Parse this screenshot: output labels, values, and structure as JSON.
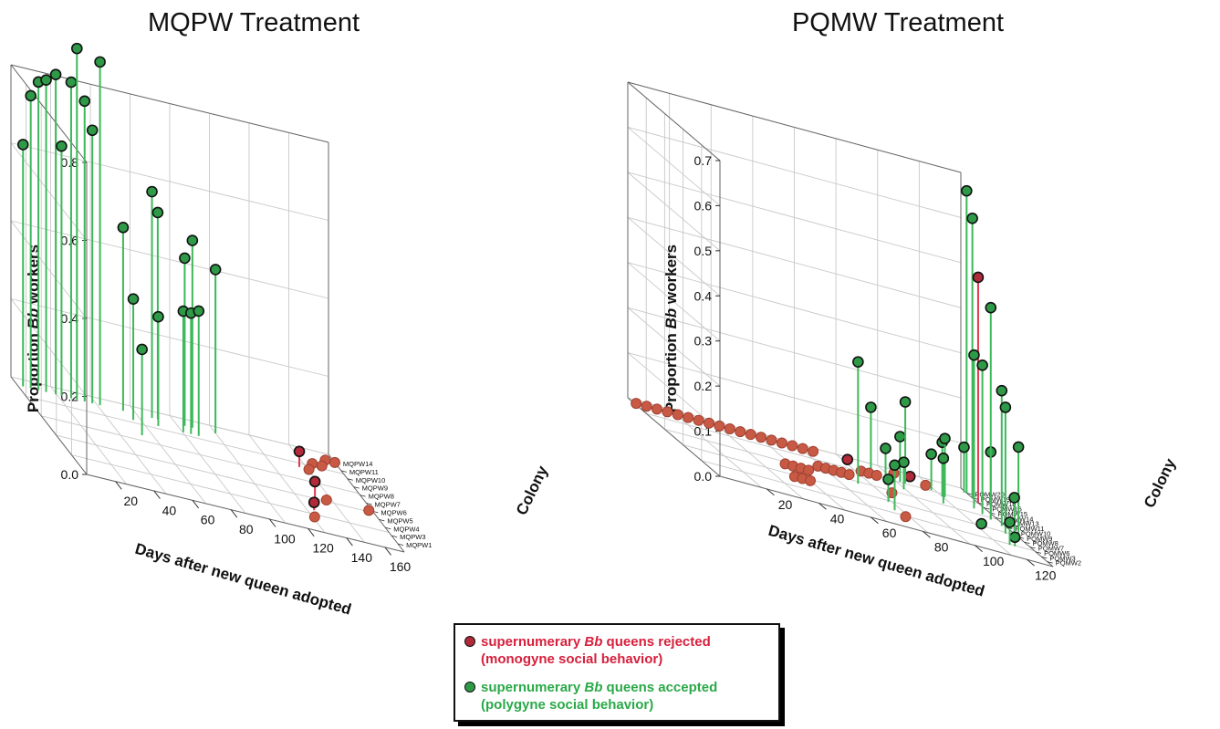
{
  "colors": {
    "rejected": "#b02a3a",
    "accepted": "#2e9a47",
    "rejected_stem": "#e0384a",
    "accepted_stem": "#3db85a",
    "rejected_fill_far": "#c85a45",
    "grid": "#c8c8c8"
  },
  "legend": {
    "rejected": {
      "pre": "supernumerary ",
      "em": "Bb",
      "post": " queens rejected",
      "line2": "(monogyne social behavior)",
      "color": "#d6203d"
    },
    "accepted": {
      "pre": "supernumerary ",
      "em": "Bb",
      "post": " queens accepted",
      "line2": "(polygyne social behavior)",
      "color": "#2aa948"
    }
  },
  "chart_data": [
    {
      "type": "scatter3d",
      "title": "MQPW Treatment",
      "xlabel": "Days after new queen adopted",
      "ylabel_pre": "Proportion ",
      "ylabel_em": "Bb",
      "ylabel_post": " workers",
      "zlabel": "Colony",
      "x_ticks": [
        "20",
        "40",
        "60",
        "80",
        "100",
        "120",
        "140",
        "160"
      ],
      "y_ticks": [
        "0.0",
        "0.2",
        "0.4",
        "0.6",
        "0.8"
      ],
      "colony_ticks": [
        "MQPW1",
        "MQPW3",
        "MQPW4",
        "MQPW5",
        "MQPW6",
        "MQPW7",
        "MQPW8",
        "MQPW9",
        "MQPW10",
        "MQPW11",
        "MQPW14"
      ],
      "xlim": [
        5,
        170
      ],
      "ylim": [
        0,
        0.8
      ],
      "grid": true,
      "points": [
        {
          "day": 8,
          "colony": "MQPW14",
          "value": 0.62,
          "status": "accepted"
        },
        {
          "day": 12,
          "colony": "MQPW14",
          "value": 0.75,
          "status": "accepted"
        },
        {
          "day": 16,
          "colony": "MQPW14",
          "value": 0.79,
          "status": "accepted"
        },
        {
          "day": 20,
          "colony": "MQPW14",
          "value": 0.8,
          "status": "accepted"
        },
        {
          "day": 25,
          "colony": "MQPW14",
          "value": 0.82,
          "status": "accepted"
        },
        {
          "day": 28,
          "colony": "MQPW14",
          "value": 0.64,
          "status": "accepted"
        },
        {
          "day": 33,
          "colony": "MQPW14",
          "value": 0.81,
          "status": "accepted"
        },
        {
          "day": 36,
          "colony": "MQPW14",
          "value": 0.9,
          "status": "accepted"
        },
        {
          "day": 40,
          "colony": "MQPW14",
          "value": 0.77,
          "status": "accepted"
        },
        {
          "day": 44,
          "colony": "MQPW14",
          "value": 0.7,
          "status": "accepted"
        },
        {
          "day": 48,
          "colony": "MQPW14",
          "value": 0.88,
          "status": "accepted"
        },
        {
          "day": 60,
          "colony": "MQPW14",
          "value": 0.47,
          "status": "accepted"
        },
        {
          "day": 75,
          "colony": "MQPW14",
          "value": 0.58,
          "status": "accepted"
        },
        {
          "day": 78,
          "colony": "MQPW14",
          "value": 0.53,
          "status": "accepted"
        },
        {
          "day": 92,
          "colony": "MQPW14",
          "value": 0.43,
          "status": "accepted"
        },
        {
          "day": 96,
          "colony": "MQPW14",
          "value": 0.48,
          "status": "accepted"
        },
        {
          "day": 108,
          "colony": "MQPW14",
          "value": 0.42,
          "status": "accepted"
        },
        {
          "day": 62,
          "colony": "MQPW11",
          "value": 0.31,
          "status": "accepted"
        },
        {
          "day": 75,
          "colony": "MQPW11",
          "value": 0.28,
          "status": "accepted"
        },
        {
          "day": 88,
          "colony": "MQPW11",
          "value": 0.31,
          "status": "accepted"
        },
        {
          "day": 92,
          "colony": "MQPW11",
          "value": 0.31,
          "status": "accepted"
        },
        {
          "day": 96,
          "colony": "MQPW11",
          "value": 0.32,
          "status": "accepted"
        },
        {
          "day": 60,
          "colony": "MQPW9",
          "value": 0.22,
          "status": "accepted"
        },
        {
          "day": 130,
          "colony": "MQPW3",
          "value": 0.0,
          "status": "rejected"
        },
        {
          "day": 133,
          "colony": "MQPW4",
          "value": 0.02,
          "status": "rejected"
        },
        {
          "day": 140,
          "colony": "MQPW6",
          "value": 0.04,
          "status": "rejected"
        },
        {
          "day": 146,
          "colony": "MQPW6",
          "value": 0.0,
          "status": "rejected"
        },
        {
          "day": 145,
          "colony": "MQPW10",
          "value": 0.04,
          "status": "rejected"
        },
        {
          "day": 150,
          "colony": "MQPW10",
          "value": 0.0,
          "status": "rejected"
        },
        {
          "day": 155,
          "colony": "MQPW11",
          "value": 0.0,
          "status": "rejected"
        },
        {
          "day": 160,
          "colony": "MQPW11",
          "value": 0.0,
          "status": "rejected"
        },
        {
          "day": 165,
          "colony": "MQPW14",
          "value": 0.0,
          "status": "rejected"
        },
        {
          "day": 170,
          "colony": "MQPW14",
          "value": 0.0,
          "status": "rejected"
        },
        {
          "day": 168,
          "colony": "MQPW6",
          "value": 0.0,
          "status": "rejected"
        }
      ]
    },
    {
      "type": "scatter3d",
      "title": "PQMW Treatment",
      "xlabel": "Days after new queen adopted",
      "ylabel_pre": "Proportion ",
      "ylabel_em": "Bb",
      "ylabel_post": " workers",
      "zlabel": "Colony",
      "x_ticks": [
        "20",
        "40",
        "60",
        "80",
        "100",
        "120"
      ],
      "y_ticks": [
        "0.0",
        "0.1",
        "0.2",
        "0.3",
        "0.4",
        "0.5",
        "0.6",
        "0.7"
      ],
      "colony_ticks": [
        "PQMW2",
        "PQMW3",
        "PQMW6",
        "PQMW7",
        "PQMW8",
        "PQMW9",
        "PQMW10",
        "PQMW11",
        "PQMW13",
        "PQMW14",
        "PQMW15",
        "PQMW16",
        "PQMW18",
        "PQMW19",
        "PQMW20"
      ],
      "xlim": [
        2,
        130
      ],
      "ylim": [
        0,
        0.7
      ],
      "grid": true,
      "points": [
        {
          "day": 3,
          "colony": "PQMW20",
          "value": 0.0,
          "status": "rejected"
        },
        {
          "day": 7,
          "colony": "PQMW20",
          "value": 0.0,
          "status": "rejected"
        },
        {
          "day": 11,
          "colony": "PQMW20",
          "value": 0.0,
          "status": "rejected"
        },
        {
          "day": 15,
          "colony": "PQMW20",
          "value": 0.0,
          "status": "rejected"
        },
        {
          "day": 19,
          "colony": "PQMW20",
          "value": 0.0,
          "status": "rejected"
        },
        {
          "day": 23,
          "colony": "PQMW20",
          "value": 0.0,
          "status": "rejected"
        },
        {
          "day": 27,
          "colony": "PQMW20",
          "value": 0.0,
          "status": "rejected"
        },
        {
          "day": 31,
          "colony": "PQMW20",
          "value": 0.0,
          "status": "rejected"
        },
        {
          "day": 35,
          "colony": "PQMW20",
          "value": 0.0,
          "status": "rejected"
        },
        {
          "day": 39,
          "colony": "PQMW20",
          "value": 0.0,
          "status": "rejected"
        },
        {
          "day": 43,
          "colony": "PQMW20",
          "value": 0.0,
          "status": "rejected"
        },
        {
          "day": 47,
          "colony": "PQMW20",
          "value": 0.0,
          "status": "rejected"
        },
        {
          "day": 51,
          "colony": "PQMW20",
          "value": 0.0,
          "status": "rejected"
        },
        {
          "day": 55,
          "colony": "PQMW20",
          "value": 0.0,
          "status": "rejected"
        },
        {
          "day": 59,
          "colony": "PQMW20",
          "value": 0.0,
          "status": "rejected"
        },
        {
          "day": 63,
          "colony": "PQMW20",
          "value": 0.0,
          "status": "rejected"
        },
        {
          "day": 67,
          "colony": "PQMW20",
          "value": 0.0,
          "status": "rejected"
        },
        {
          "day": 71,
          "colony": "PQMW20",
          "value": 0.0,
          "status": "rejected"
        },
        {
          "day": 47,
          "colony": "PQMW13",
          "value": 0.0,
          "status": "rejected"
        },
        {
          "day": 50,
          "colony": "PQMW13",
          "value": 0.0,
          "status": "rejected"
        },
        {
          "day": 53,
          "colony": "PQMW13",
          "value": 0.0,
          "status": "rejected"
        },
        {
          "day": 56,
          "colony": "PQMW13",
          "value": 0.0,
          "status": "rejected"
        },
        {
          "day": 44,
          "colony": "PQMW9",
          "value": 0.0,
          "status": "rejected"
        },
        {
          "day": 47,
          "colony": "PQMW9",
          "value": 0.0,
          "status": "rejected"
        },
        {
          "day": 50,
          "colony": "PQMW9",
          "value": 0.0,
          "status": "rejected"
        },
        {
          "day": 64,
          "colony": "PQMW15",
          "value": 0.0,
          "status": "rejected"
        },
        {
          "day": 67,
          "colony": "PQMW15",
          "value": 0.0,
          "status": "rejected"
        },
        {
          "day": 70,
          "colony": "PQMW15",
          "value": 0.0,
          "status": "rejected"
        },
        {
          "day": 73,
          "colony": "PQMW15",
          "value": 0.0,
          "status": "rejected"
        },
        {
          "day": 76,
          "colony": "PQMW15",
          "value": 0.0,
          "status": "rejected"
        },
        {
          "day": 85,
          "colony": "PQMW18",
          "value": 0.0,
          "status": "rejected"
        },
        {
          "day": 88,
          "colony": "PQMW18",
          "value": 0.0,
          "status": "rejected"
        },
        {
          "day": 91,
          "colony": "PQMW18",
          "value": 0.0,
          "status": "rejected"
        },
        {
          "day": 88,
          "colony": "PQMW13",
          "value": 0.0,
          "status": "rejected"
        },
        {
          "day": 80,
          "colony": "PQMW6",
          "value": 0.0,
          "status": "rejected"
        },
        {
          "day": 82,
          "colony": "PQMW19",
          "value": 0.01,
          "status": "rejected"
        },
        {
          "day": 106,
          "colony": "PQMW19",
          "value": 0.01,
          "status": "rejected"
        },
        {
          "day": 112,
          "colony": "PQMW19",
          "value": 0.0,
          "status": "rejected"
        },
        {
          "day": 102,
          "colony": "PQMW20",
          "value": 0.0,
          "status": "rejected"
        },
        {
          "day": 75,
          "colony": "PQMW13",
          "value": 0.27,
          "status": "accepted"
        },
        {
          "day": 78,
          "colony": "PQMW7",
          "value": 0.1,
          "status": "accepted"
        },
        {
          "day": 80,
          "colony": "PQMW9",
          "value": 0.05,
          "status": "accepted"
        },
        {
          "day": 90,
          "colony": "PQMW15",
          "value": 0.08,
          "status": "accepted"
        },
        {
          "day": 91,
          "colony": "PQMW19",
          "value": 0.14,
          "status": "accepted"
        },
        {
          "day": 97,
          "colony": "PQMW15",
          "value": 0.06,
          "status": "accepted"
        },
        {
          "day": 100,
          "colony": "PQMW18",
          "value": 0.1,
          "status": "accepted"
        },
        {
          "day": 102,
          "colony": "PQMW18",
          "value": 0.18,
          "status": "accepted"
        },
        {
          "day": 110,
          "colony": "PQMW14",
          "value": 0.1,
          "status": "accepted"
        },
        {
          "day": 112,
          "colony": "PQMW18",
          "value": 0.08,
          "status": "accepted"
        },
        {
          "day": 114,
          "colony": "PQMW16",
          "value": 0.12,
          "status": "accepted"
        },
        {
          "day": 115,
          "colony": "PQMW16",
          "value": 0.13,
          "status": "accepted"
        },
        {
          "day": 118,
          "colony": "PQMW10",
          "value": 0.0,
          "status": "accepted"
        },
        {
          "day": 122,
          "colony": "PQMW6",
          "value": 0.02,
          "status": "accepted"
        },
        {
          "day": 124,
          "colony": "PQMW7",
          "value": 0.1,
          "status": "accepted"
        },
        {
          "day": 120,
          "colony": "PQMW6",
          "value": 0.05,
          "status": "accepted"
        },
        {
          "day": 126,
          "colony": "PQMW13",
          "value": 0.15,
          "status": "accepted"
        },
        {
          "day": 130,
          "colony": "PQMW9",
          "value": 0.2,
          "status": "accepted"
        },
        {
          "day": 125,
          "colony": "PQMW9",
          "value": 0.28,
          "status": "accepted"
        },
        {
          "day": 128,
          "colony": "PQMW11",
          "value": 0.3,
          "status": "accepted"
        },
        {
          "day": 126,
          "colony": "PQMW13",
          "value": 0.47,
          "status": "accepted"
        },
        {
          "day": 125,
          "colony": "PQMW14",
          "value": 0.33,
          "status": "accepted"
        },
        {
          "day": 124,
          "colony": "PQMW15",
          "value": 0.34,
          "status": "accepted"
        },
        {
          "day": 130,
          "colony": "PQMW20",
          "value": 0.67,
          "status": "accepted"
        },
        {
          "day": 130,
          "colony": "PQMW19",
          "value": 0.62,
          "status": "accepted"
        },
        {
          "day": 130,
          "colony": "PQMW18",
          "value": 0.5,
          "status": "rejected"
        },
        {
          "day": 129,
          "colony": "PQMW20",
          "value": 0.1,
          "status": "accepted"
        }
      ]
    }
  ]
}
